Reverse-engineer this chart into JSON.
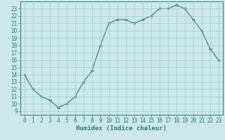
{
  "x": [
    0,
    1,
    2,
    3,
    4,
    5,
    6,
    7,
    8,
    9,
    10,
    11,
    12,
    13,
    14,
    15,
    16,
    17,
    18,
    19,
    20,
    21,
    22,
    23
  ],
  "y": [
    14,
    12,
    11,
    10.5,
    9.5,
    10,
    11,
    13,
    14.5,
    18,
    21,
    21.5,
    21.5,
    21,
    21.5,
    22,
    23,
    23,
    23.5,
    23,
    21.5,
    20,
    17.5,
    16
  ],
  "line_color": "#2e7d6b",
  "marker": "D",
  "marker_size": 2,
  "bg_color": "#cce8e8",
  "grid_color": "#9fcfcf",
  "xlabel": "Humidex (Indice chaleur)",
  "xlim": [
    -0.5,
    23.5
  ],
  "ylim": [
    8.5,
    24
  ],
  "yticks": [
    9,
    10,
    11,
    12,
    13,
    14,
    15,
    16,
    17,
    18,
    19,
    20,
    21,
    22,
    23
  ],
  "xticks": [
    0,
    1,
    2,
    3,
    4,
    5,
    6,
    7,
    8,
    9,
    10,
    11,
    12,
    13,
    14,
    15,
    16,
    17,
    18,
    19,
    20,
    21,
    22,
    23
  ],
  "tick_color": "#2e7d6b",
  "axis_color": "#2e7d6b",
  "tick_fontsize": 5.5,
  "xlabel_fontsize": 6.5
}
